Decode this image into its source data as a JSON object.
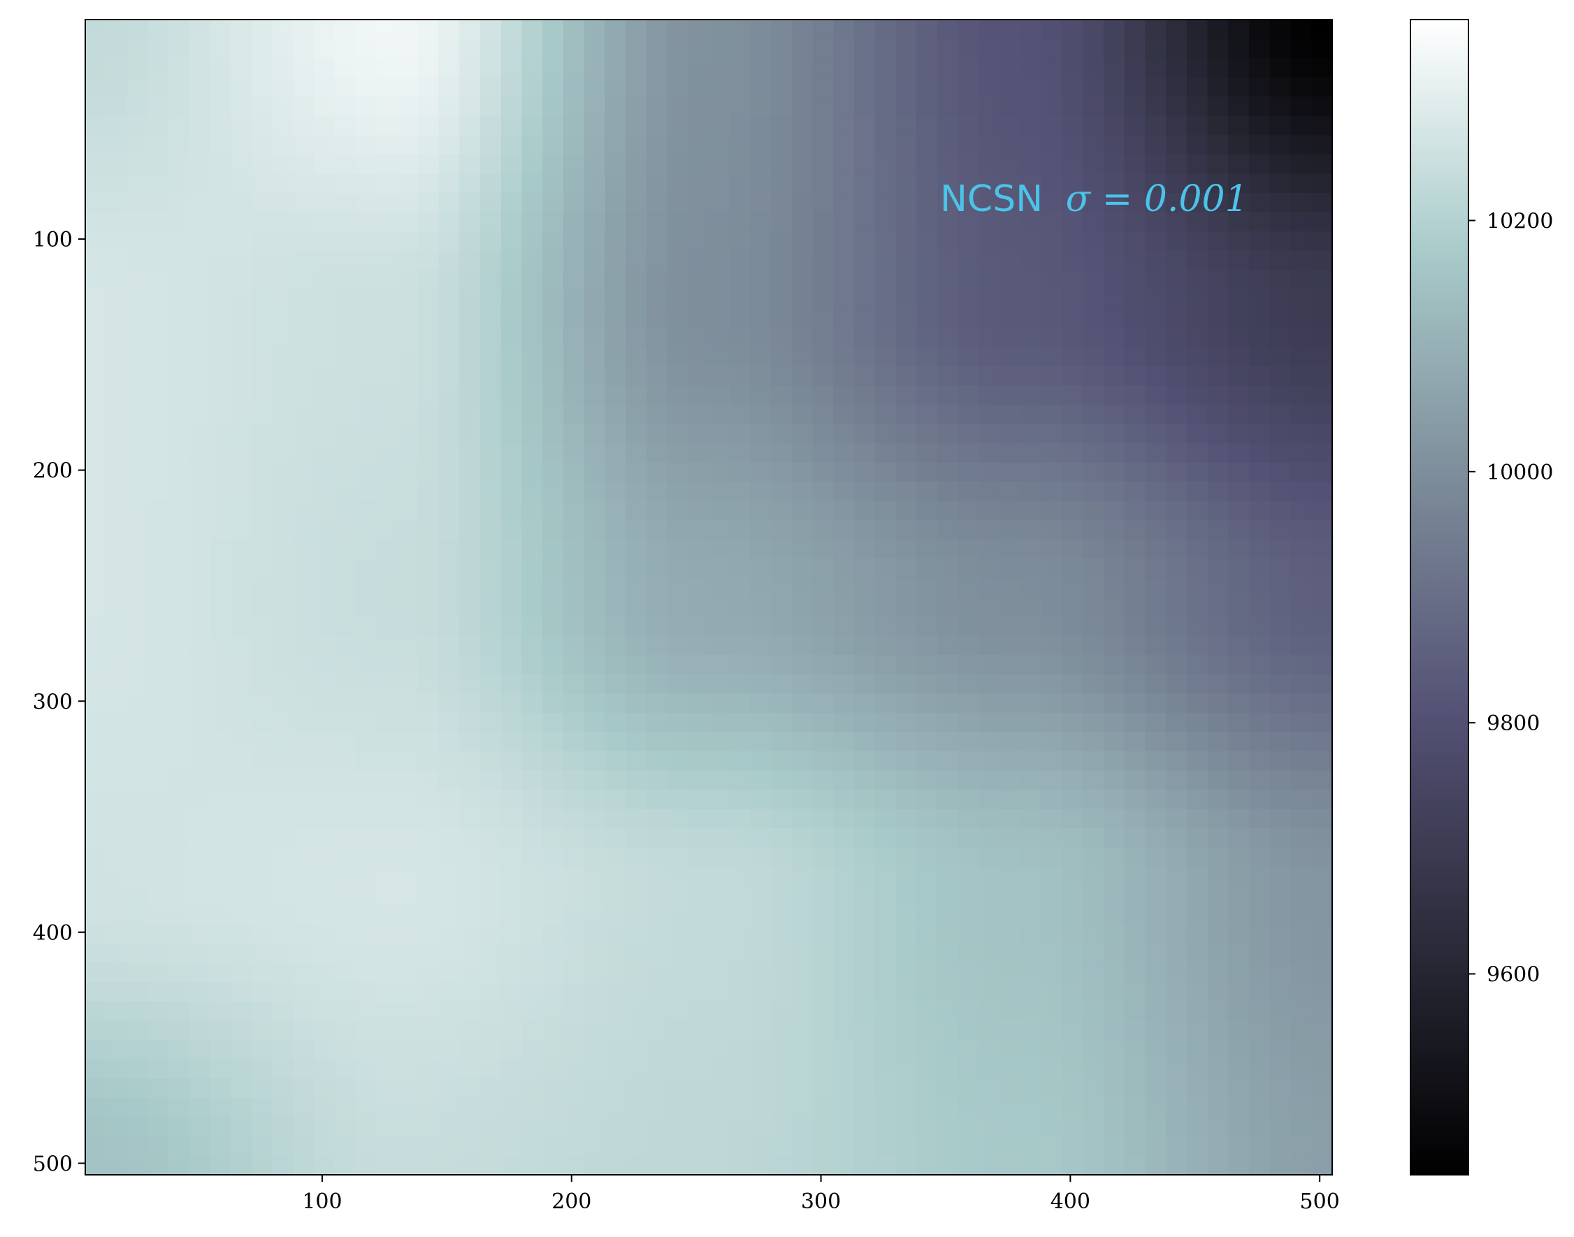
{
  "chart_data": {
    "type": "heatmap",
    "title": "",
    "xlabel": "",
    "ylabel": "",
    "annotation": {
      "prefix": "NCSN",
      "math": "σ = 0.001"
    },
    "xlim": [
      5,
      505
    ],
    "ylim": [
      505,
      5
    ],
    "x_ticks": [
      100,
      200,
      300,
      400,
      500
    ],
    "y_ticks": [
      100,
      200,
      300,
      400,
      500
    ],
    "colormap": "bone",
    "colormap_stops": [
      "#000000",
      "#2b2b3a",
      "#545275",
      "#7c8b99",
      "#a9cbca",
      "#ffffff"
    ],
    "colorbar": {
      "range": [
        9440,
        10360
      ],
      "ticks": [
        9600,
        9800,
        10000,
        10200
      ]
    },
    "grid": {
      "x": [
        5,
        130,
        255,
        380,
        505
      ],
      "y": [
        5,
        130,
        255,
        380,
        505
      ],
      "values": [
        [
          10230,
          10330,
          10010,
          9810,
          9440
        ],
        [
          10270,
          10250,
          10000,
          9830,
          9700
        ],
        [
          10270,
          10240,
          10080,
          10000,
          9850
        ],
        [
          10260,
          10270,
          10230,
          10150,
          10020
        ],
        [
          10150,
          10240,
          10220,
          10170,
          10050
        ]
      ]
    },
    "grid_on": false
  }
}
